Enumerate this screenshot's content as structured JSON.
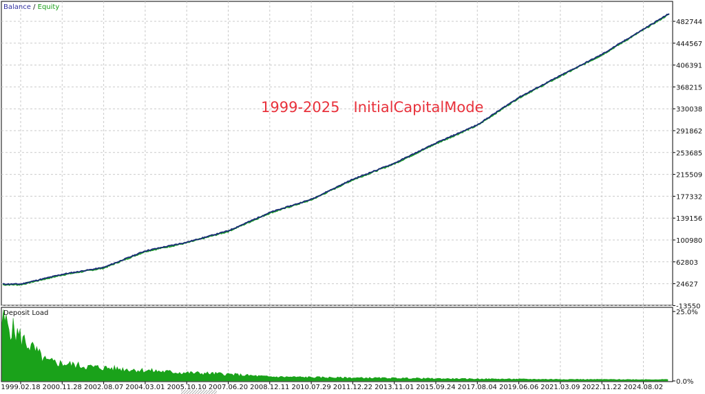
{
  "annotation": "1999-2025   InitialCapitalMode",
  "colors": {
    "balance": "#2f2fa0",
    "equity": "#1aa01a",
    "balance_line": "#1a2b78",
    "equity_line": "#1f9b2e",
    "load_fill": "#1aa21a",
    "annotation": "#e8323c",
    "grid": "#c9c9c9"
  },
  "chart_data": [
    {
      "type": "line",
      "legend": {
        "items": [
          "Balance",
          "Equity"
        ],
        "separator": "/",
        "placement": "top-left"
      },
      "y_ticks": [
        "482744",
        "444567",
        "406391",
        "368215",
        "330038",
        "291862",
        "253685",
        "215509",
        "177332",
        "139156",
        "100980",
        "62803",
        "24627",
        "-13550"
      ],
      "ylim": [
        -13550,
        482744
      ],
      "grid": true,
      "series": [
        {
          "name": "Balance",
          "x": [
            "1999.02.18",
            "2000.11.28",
            "2002.08.07",
            "2004.03.01",
            "2005.10.10",
            "2007.06.20",
            "2008.12.11",
            "2010.07.29",
            "2011.12.22",
            "2013.11.01",
            "2015.09.24",
            "2017.08.04",
            "2019.06.06",
            "2021.03.09",
            "2022.11.22",
            "2024.08.02"
          ],
          "values": [
            24000,
            41000,
            53000,
            82000,
            97000,
            117000,
            149000,
            172000,
            207000,
            235000,
            270000,
            302000,
            350000,
            388000,
            425000,
            469000
          ]
        },
        {
          "name": "Equity",
          "x": [
            "1999.02.18",
            "2000.11.28",
            "2002.08.07",
            "2004.03.01",
            "2005.10.10",
            "2007.06.20",
            "2008.12.11",
            "2010.07.29",
            "2011.12.22",
            "2013.11.01",
            "2015.09.24",
            "2017.08.04",
            "2019.06.06",
            "2021.03.09",
            "2022.11.22",
            "2024.08.02"
          ],
          "values": [
            23000,
            40000,
            52000,
            81000,
            96000,
            116000,
            148000,
            171000,
            206000,
            234000,
            269000,
            301000,
            349000,
            387000,
            424000,
            468000
          ]
        }
      ]
    },
    {
      "type": "area",
      "title": "Deposit Load",
      "y_ticks": [
        "25.0%",
        "0.0%"
      ],
      "ylim": [
        0,
        25
      ],
      "x": [
        "1999.02.18",
        "2000.11.28",
        "2002.08.07",
        "2004.03.01",
        "2005.10.10",
        "2007.06.20",
        "2008.12.11",
        "2010.07.29",
        "2011.12.22",
        "2013.11.01",
        "2015.09.24",
        "2017.08.04",
        "2019.06.06",
        "2021.03.09",
        "2022.11.22",
        "2024.08.02"
      ],
      "series": [
        {
          "name": "Deposit Load",
          "values": [
            22,
            7,
            5,
            4,
            3,
            2.5,
            1.5,
            1.3,
            1.1,
            1,
            0.8,
            0.7,
            0.6,
            0.55,
            0.5,
            0.5
          ]
        }
      ]
    }
  ]
}
